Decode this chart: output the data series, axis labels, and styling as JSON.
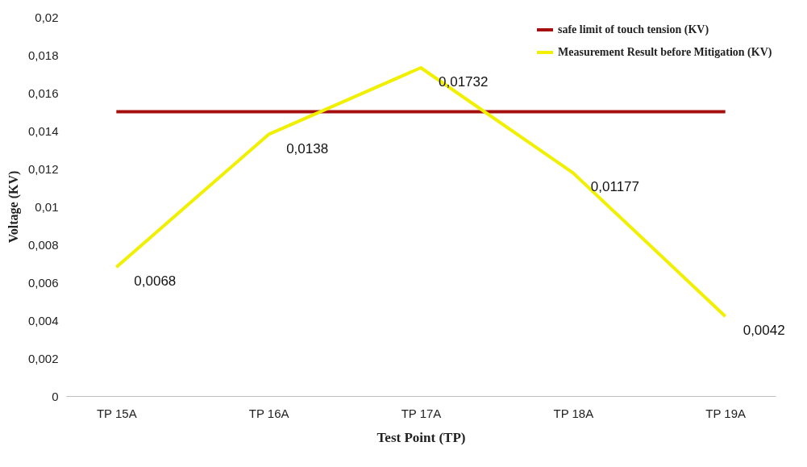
{
  "chart_data": {
    "type": "line",
    "xlabel": "Test Point (TP)",
    "ylabel": "Voltage (KV)",
    "categories": [
      "TP 15A",
      "TP 16A",
      "TP 17A",
      "TP 18A",
      "TP 19A"
    ],
    "series": [
      {
        "name": "safe limit of touch tension (KV)",
        "color": "#a50f0f",
        "values": [
          0.015,
          0.015,
          0.015,
          0.015,
          0.015
        ]
      },
      {
        "name": "Measurement Result before Mitigation (KV)",
        "color": "#f0f000",
        "values": [
          0.0068,
          0.0138,
          0.01732,
          0.01177,
          0.0042
        ],
        "value_labels": [
          "0,0068",
          "0,0138",
          "0,01732",
          "0,01177",
          "0,0042"
        ]
      }
    ],
    "ylim": [
      0,
      0.02
    ],
    "yticks": [
      0,
      {
        "value": 0.002,
        "label": "0,002"
      },
      {
        "value": 0.004,
        "label": "0,004"
      },
      {
        "value": 0.006,
        "label": "0,006"
      },
      {
        "value": 0.008,
        "label": "0,008"
      },
      {
        "value": 0.01,
        "label": "0,01"
      },
      {
        "value": 0.012,
        "label": "0,012"
      },
      {
        "value": 0.014,
        "label": "0,014"
      },
      {
        "value": 0.016,
        "label": "0,016"
      },
      {
        "value": 0.018,
        "label": "0,018"
      },
      {
        "value": 0.02,
        "label": "0,02"
      }
    ],
    "grid": false,
    "legend": "top right",
    "marker": "none",
    "line_style": "solid"
  }
}
